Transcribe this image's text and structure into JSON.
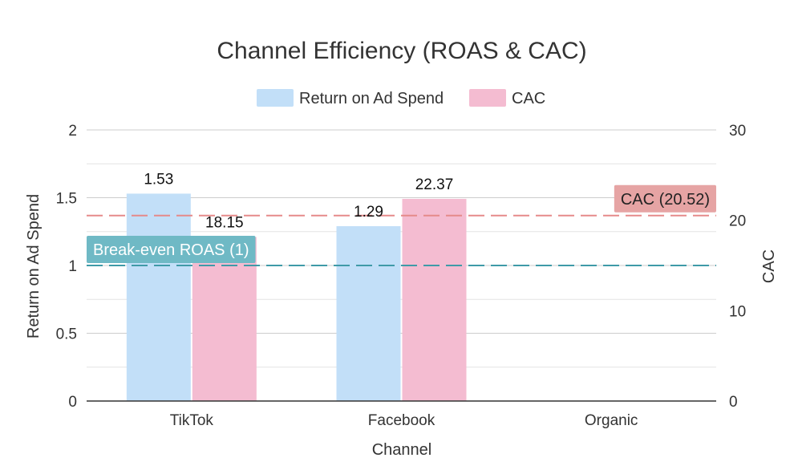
{
  "chart_data": {
    "type": "bar",
    "title": "Channel Efficiency (ROAS & CAC)",
    "xlabel": "Channel",
    "ylabel": "Return on Ad Spend",
    "y2label": "CAC",
    "categories": [
      "TikTok",
      "Facebook",
      "Organic"
    ],
    "series": [
      {
        "name": "Return on Ad Spend",
        "axis": "left",
        "color": "#c2dff8",
        "values": [
          1.53,
          1.29,
          null
        ],
        "labels": [
          "1.53",
          "1.29",
          ""
        ]
      },
      {
        "name": "CAC",
        "axis": "right",
        "color": "#f4bcd1",
        "values": [
          18.15,
          22.37,
          null
        ],
        "labels": [
          "18.15",
          "22.37",
          ""
        ]
      }
    ],
    "ylim": [
      0,
      2
    ],
    "yticks": [
      "0",
      "0.5",
      "1",
      "1.5",
      "2"
    ],
    "y2lim": [
      0,
      30
    ],
    "y2ticks": [
      "0",
      "10",
      "20",
      "30"
    ],
    "grid": true,
    "legend_position": "top-center",
    "annotations": [
      {
        "text": "Break-even ROAS (1)",
        "axis": "left",
        "value": 1,
        "line_color": "#3f9aa8",
        "box_color": "#6fb9c5",
        "text_color": "#ffffff",
        "position": "left"
      },
      {
        "text": "CAC (20.52)",
        "axis": "right",
        "value": 20.52,
        "line_color": "#e58a8a",
        "box_color": "#e6a4a4",
        "text_color": "#222222",
        "position": "right"
      }
    ]
  }
}
